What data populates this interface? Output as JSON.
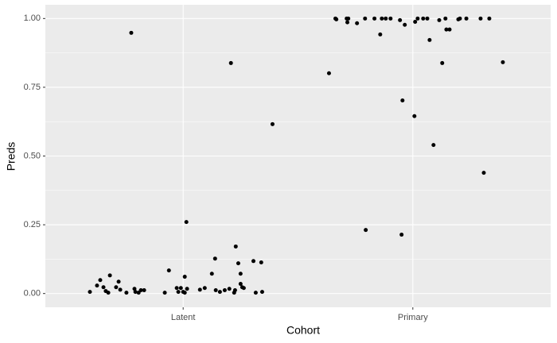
{
  "chart_data": {
    "type": "scatter",
    "x_label": "Cohort",
    "y_label": "Preds",
    "xlim": [
      0.4,
      2.6
    ],
    "ylim": [
      -0.05,
      1.05
    ],
    "xticks": [
      {
        "value": 1,
        "label": "Latent"
      },
      {
        "value": 2,
        "label": "Primary"
      }
    ],
    "yticks": [
      {
        "value": 0,
        "label": "0.00"
      },
      {
        "value": 0.25,
        "label": "0.25"
      },
      {
        "value": 0.5,
        "label": "0.50"
      },
      {
        "value": 0.75,
        "label": "0.75"
      },
      {
        "value": 1,
        "label": "1.00"
      }
    ],
    "y_minor_ticks": [
      0.125,
      0.375,
      0.625,
      0.875
    ],
    "grid": true,
    "color": "#000000",
    "x": [
      0.594,
      0.625,
      0.639,
      0.653,
      0.663,
      0.674,
      0.681,
      0.708,
      0.719,
      0.726,
      0.753,
      0.774,
      0.788,
      0.792,
      0.806,
      0.816,
      0.83,
      0.92,
      0.938,
      0.972,
      0.979,
      0.99,
      1.0,
      1.007,
      1.007,
      1.014,
      1.017,
      1.073,
      1.094,
      1.125,
      1.139,
      1.142,
      1.16,
      1.181,
      1.201,
      1.208,
      1.222,
      1.226,
      1.229,
      1.24,
      1.25,
      1.25,
      1.257,
      1.264,
      1.306,
      1.316,
      1.34,
      1.344,
      1.389,
      1.635,
      1.663,
      1.667,
      1.712,
      1.719,
      1.715,
      1.757,
      1.792,
      1.795,
      1.833,
      1.858,
      1.865,
      1.882,
      1.903,
      1.944,
      1.951,
      1.955,
      1.965,
      2.007,
      2.01,
      2.021,
      2.045,
      2.063,
      2.073,
      2.09,
      2.115,
      2.128,
      2.142,
      2.146,
      2.16,
      2.198,
      2.205,
      2.233,
      2.295,
      2.309,
      2.333,
      2.392
    ],
    "y": [
      0.006,
      0.029,
      0.049,
      0.023,
      0.009,
      0.003,
      0.066,
      0.023,
      0.043,
      0.014,
      0.003,
      0.948,
      0.017,
      0.006,
      0.003,
      0.012,
      0.012,
      0.003,
      0.084,
      0.02,
      0.006,
      0.02,
      0.006,
      0.061,
      0.003,
      0.26,
      0.017,
      0.014,
      0.02,
      0.072,
      0.127,
      0.012,
      0.006,
      0.012,
      0.017,
      0.838,
      0.003,
      0.012,
      0.171,
      0.11,
      0.072,
      0.035,
      0.023,
      0.02,
      0.118,
      0.003,
      0.113,
      0.006,
      0.616,
      0.801,
      1.0,
      0.997,
      1.0,
      1.0,
      0.986,
      0.983,
      1.0,
      0.231,
      1.0,
      0.942,
      1.0,
      1.0,
      1.0,
      0.994,
      0.214,
      0.702,
      0.977,
      0.645,
      0.988,
      1.0,
      1.0,
      1.0,
      0.922,
      0.54,
      0.994,
      0.838,
      1.0,
      0.96,
      0.96,
      0.997,
      1.0,
      1.0,
      1.0,
      0.439,
      1.0,
      0.841
    ]
  }
}
